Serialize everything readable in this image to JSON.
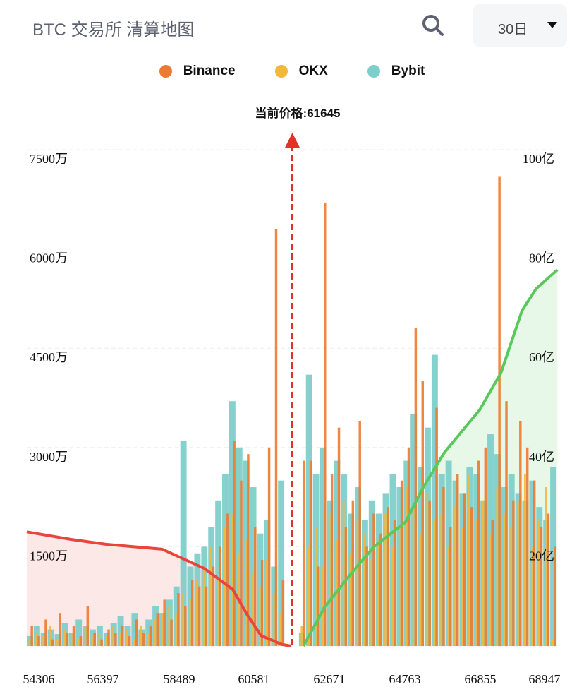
{
  "header": {
    "title": "BTC 交易所  清算地图",
    "range_selected": "30日",
    "search_icon": "search-icon"
  },
  "legend": [
    {
      "name": "Binance",
      "color": "#ec7a30"
    },
    {
      "name": "OKX",
      "color": "#f3b73c"
    },
    {
      "name": "Bybit",
      "color": "#7ecfcb"
    }
  ],
  "chart_data": {
    "type": "bar",
    "current_price_label": "当前价格:61645",
    "current_price": 61645,
    "x_ticks": [
      "54306",
      "56397",
      "58489",
      "60581",
      "62671",
      "64763",
      "66855",
      "68947"
    ],
    "x_range": [
      53960,
      69310
    ],
    "y_left_ticks": [
      "1500万",
      "3000万",
      "4500万",
      "6000万",
      "7500万"
    ],
    "y_left_range_wan": [
      0,
      7500
    ],
    "y_right_ticks": [
      "20亿",
      "40亿",
      "60亿",
      "80亿",
      "100亿"
    ],
    "y_right_range_yi": [
      0,
      100
    ],
    "grid": true,
    "bucket_start": 53960,
    "bucket_step": 200,
    "series": [
      {
        "name": "Binance",
        "color": "#ec7a30",
        "values": [
          300,
          150,
          400,
          100,
          500,
          200,
          300,
          150,
          600,
          200,
          100,
          250,
          200,
          300,
          150,
          400,
          200,
          300,
          500,
          700,
          400,
          800,
          600,
          1000,
          900,
          900,
          1200,
          1500,
          2000,
          3100,
          2500,
          2900,
          1800,
          1300,
          3000,
          6300,
          1000,
          0,
          0,
          2800,
          2800,
          1200,
          6700,
          2600,
          3300,
          1800,
          2200,
          3400,
          1500,
          2000,
          1700,
          2100,
          1900,
          2500,
          3000,
          4800,
          4000,
          2200,
          3600,
          2400,
          1800,
          2600,
          2300,
          2100,
          2800,
          3000,
          1900,
          7100,
          3700,
          2200,
          3400,
          3000,
          2500,
          1800,
          2000,
          1500
        ]
      },
      {
        "name": "OKX",
        "color": "#f3b73c",
        "values": [
          100,
          200,
          150,
          300,
          100,
          250,
          200,
          100,
          300,
          150,
          200,
          150,
          300,
          200,
          250,
          100,
          300,
          200,
          400,
          500,
          600,
          500,
          800,
          700,
          1000,
          1200,
          1500,
          1000,
          1800,
          2000,
          1400,
          1600,
          1100,
          900,
          1300,
          800,
          500,
          0,
          0,
          300,
          1500,
          1800,
          1200,
          2000,
          1600,
          2200,
          1400,
          1900,
          1700,
          1300,
          1600,
          2000,
          1500,
          1800,
          2400,
          2100,
          1700,
          2300,
          1900,
          2000,
          1500,
          2100,
          1800,
          2600,
          1900,
          2200,
          1700,
          2400,
          2000,
          1800,
          2200,
          2600,
          1500,
          1900,
          2400,
          100
        ]
      },
      {
        "name": "Bybit",
        "color": "#7ecfcb",
        "values": [
          150,
          300,
          200,
          250,
          180,
          350,
          200,
          400,
          300,
          250,
          300,
          200,
          350,
          450,
          300,
          500,
          250,
          400,
          600,
          500,
          700,
          900,
          3100,
          1200,
          1400,
          1500,
          1800,
          2200,
          2600,
          3700,
          3000,
          2800,
          2400,
          1700,
          1900,
          1200,
          2500,
          0,
          0,
          200,
          4100,
          2600,
          3000,
          2200,
          2800,
          2600,
          2000,
          2400,
          1900,
          2200,
          2000,
          2300,
          2600,
          2400,
          2800,
          3500,
          2700,
          3300,
          4400,
          2600,
          2800,
          2500,
          2300,
          2700,
          2600,
          2200,
          3200,
          2900,
          2400,
          2600,
          2300,
          2200,
          2500,
          2100,
          1900,
          2700
        ]
      }
    ],
    "cumulative_short": {
      "color": "#e8463c",
      "points": [
        [
          53959,
          23
        ],
        [
          55225,
          21.5
        ],
        [
          56246,
          20.5
        ],
        [
          57880,
          19.5
        ],
        [
          59105,
          15.6
        ],
        [
          59922,
          11.4
        ],
        [
          60330,
          6.4
        ],
        [
          60738,
          2.1
        ],
        [
          61351,
          0.3
        ],
        [
          61617,
          0
        ]
      ]
    },
    "cumulative_long": {
      "color": "#5ac85a",
      "points": [
        [
          61964,
          0
        ],
        [
          62576,
          7.8
        ],
        [
          63393,
          15
        ],
        [
          64006,
          20
        ],
        [
          64925,
          25
        ],
        [
          65435,
          32
        ],
        [
          66048,
          39
        ],
        [
          67069,
          47.6
        ],
        [
          67681,
          55
        ],
        [
          68294,
          67.6
        ],
        [
          68702,
          72
        ],
        [
          69315,
          75.8
        ]
      ]
    }
  }
}
